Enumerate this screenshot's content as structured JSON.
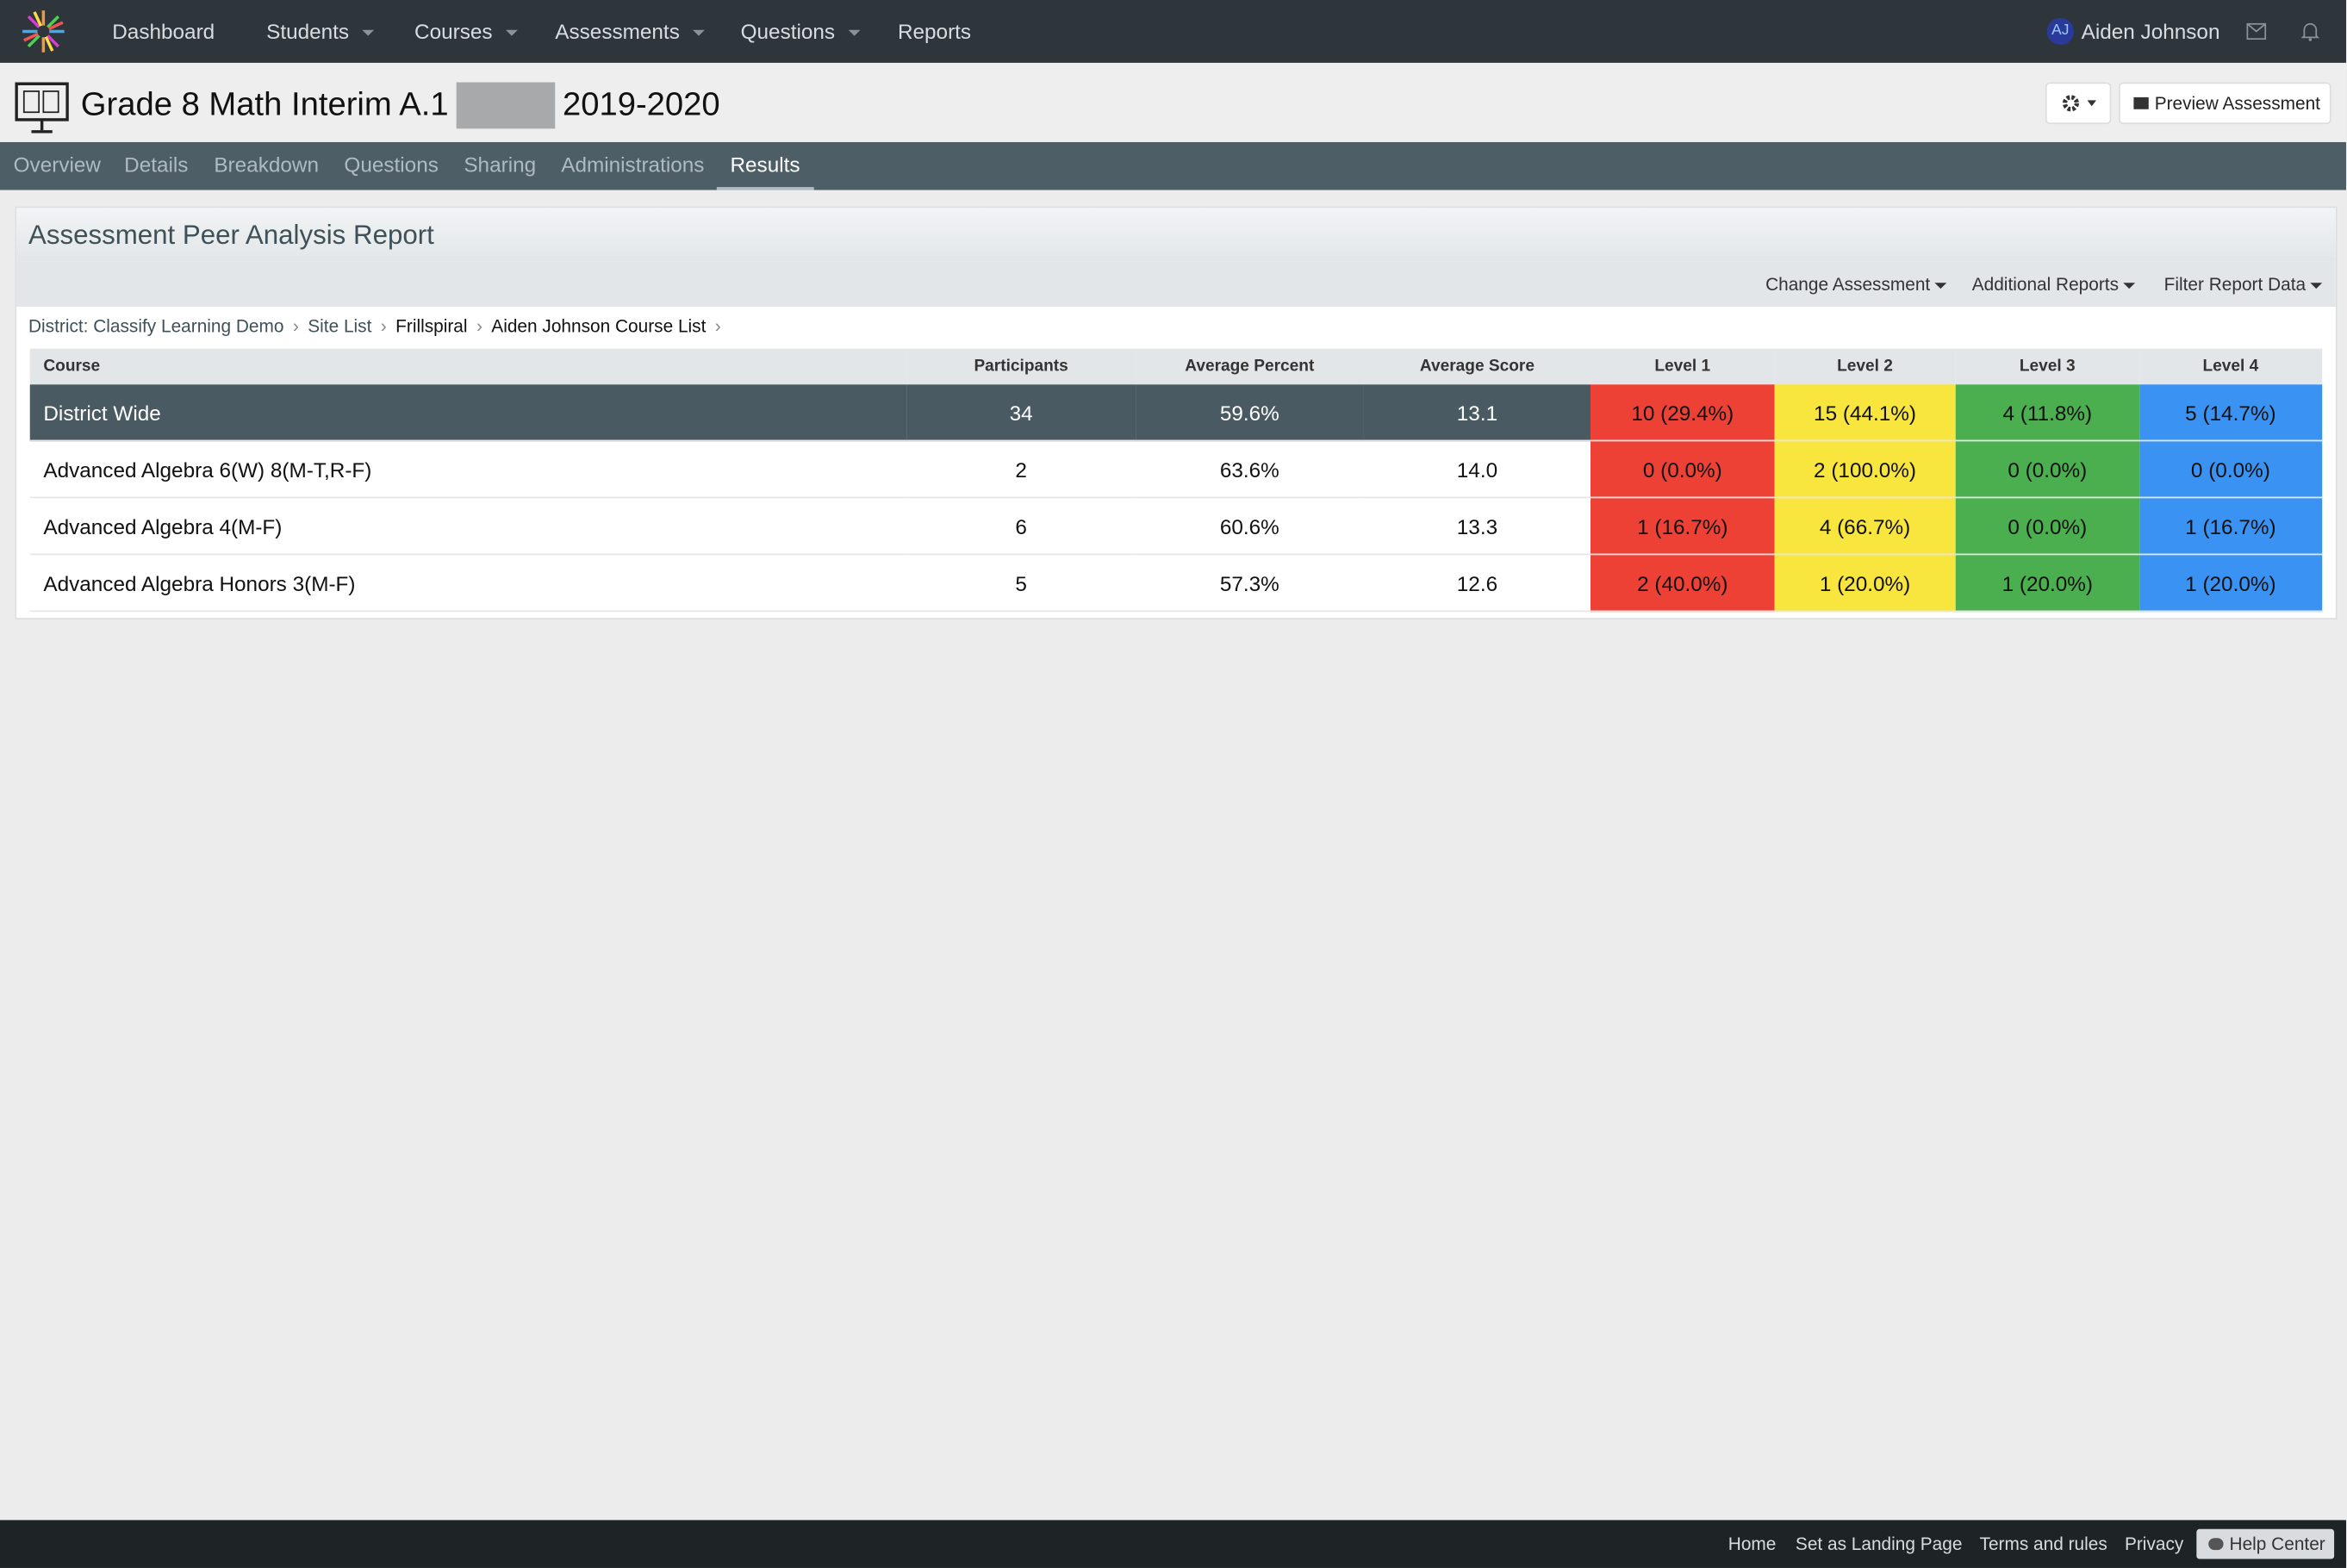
{
  "nav": {
    "items": [
      "Dashboard",
      "Students",
      "Courses",
      "Assessments",
      "Questions",
      "Reports"
    ],
    "dropdown": [
      false,
      true,
      true,
      true,
      true,
      false
    ],
    "user_initials": "AJ",
    "user_name": "Aiden Johnson"
  },
  "header": {
    "title_prefix": "Grade 8 Math Interim A.1",
    "title_suffix": "2019-2020",
    "preview_button": "Preview Assessment"
  },
  "tabs": {
    "items": [
      "Overview",
      "Details",
      "Breakdown",
      "Questions",
      "Sharing",
      "Administrations",
      "Results"
    ],
    "active": 6
  },
  "report": {
    "title": "Assessment Peer Analysis Report",
    "toolbar": [
      "Change Assessment",
      "Additional Reports",
      "Filter Report Data"
    ],
    "breadcrumbs": [
      "District: Classify Learning Demo",
      "Site List",
      "Frillspiral",
      "Aiden Johnson Course List"
    ],
    "table": {
      "columns": [
        "Course",
        "Participants",
        "Average Percent",
        "Average Score",
        "Level 1",
        "Level 2",
        "Level 3",
        "Level 4"
      ],
      "rows": [
        [
          "District Wide",
          "34",
          "59.6%",
          "13.1",
          "10 (29.4%)",
          "15 (44.1%)",
          "4 (11.8%)",
          "5 (14.7%)"
        ],
        [
          "Advanced Algebra 6(W) 8(M-T,R-F)",
          "2",
          "63.6%",
          "14.0",
          "0 (0.0%)",
          "2 (100.0%)",
          "0 (0.0%)",
          "0 (0.0%)"
        ],
        [
          "Advanced Algebra 4(M-F)",
          "6",
          "60.6%",
          "13.3",
          "1 (16.7%)",
          "4 (66.7%)",
          "0 (0.0%)",
          "1 (16.7%)"
        ],
        [
          "Advanced Algebra Honors 3(M-F)",
          "5",
          "57.3%",
          "12.6",
          "2 (40.0%)",
          "1 (20.0%)",
          "1 (20.0%)",
          "1 (20.0%)"
        ]
      ],
      "level_colors": [
        "#ee4136",
        "#f8e53e",
        "#4bae4f",
        "#3a92f2"
      ]
    }
  },
  "footer": {
    "links": [
      "Home",
      "Set as Landing Page",
      "Terms and rules",
      "Privacy"
    ],
    "help": "Help Center"
  }
}
